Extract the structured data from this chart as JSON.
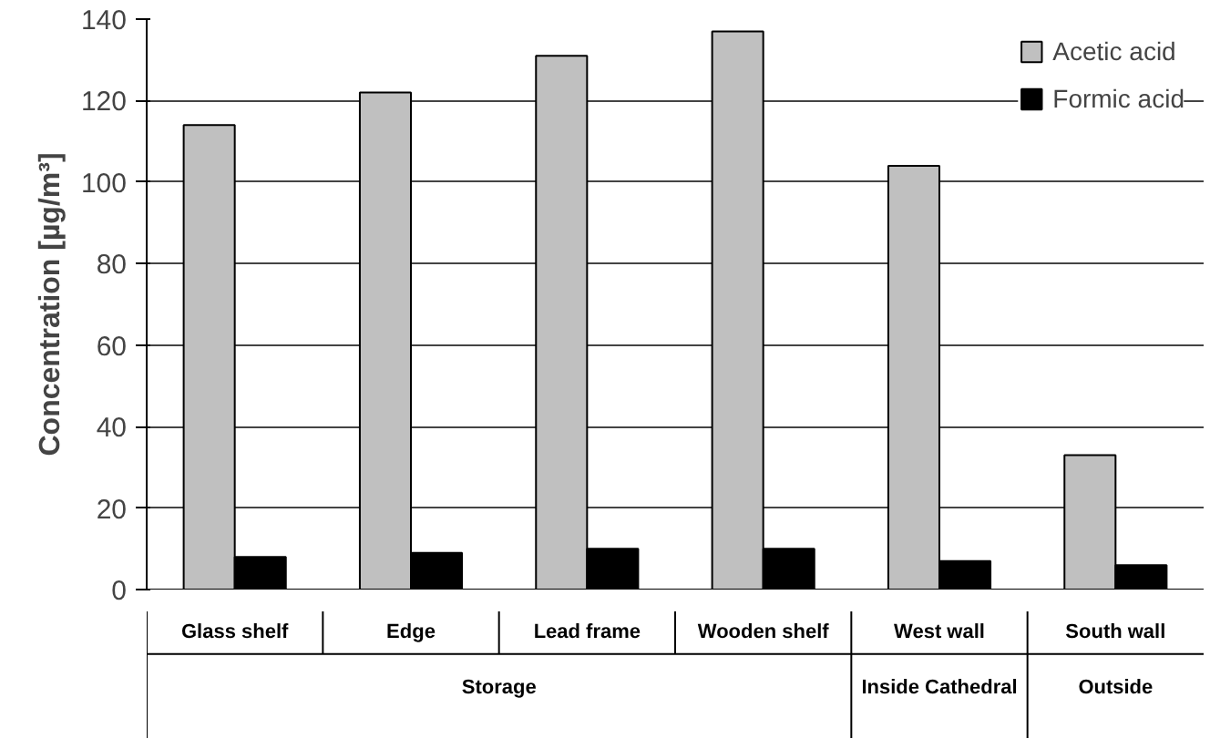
{
  "chart_data": {
    "type": "bar",
    "ylabel": "Concentration [µg/m³]",
    "categories": [
      "Glass shelf",
      "Edge",
      "Lead frame",
      "Wooden shelf",
      "West wall",
      "South wall"
    ],
    "series": [
      {
        "name": "Acetic acid",
        "color": "#c0c0c0",
        "values": [
          114,
          122,
          131,
          137,
          104,
          33
        ]
      },
      {
        "name": "Formic acid",
        "color": "#000000",
        "values": [
          8,
          9,
          10,
          10,
          7,
          6
        ]
      }
    ],
    "annotations": [
      "Storage",
      "Inside Cathedral",
      "Outside"
    ],
    "ylim": [
      0,
      140
    ],
    "yticks": [
      0,
      20,
      40,
      60,
      80,
      100,
      120,
      140
    ],
    "grid": "y",
    "legend": "top right"
  }
}
